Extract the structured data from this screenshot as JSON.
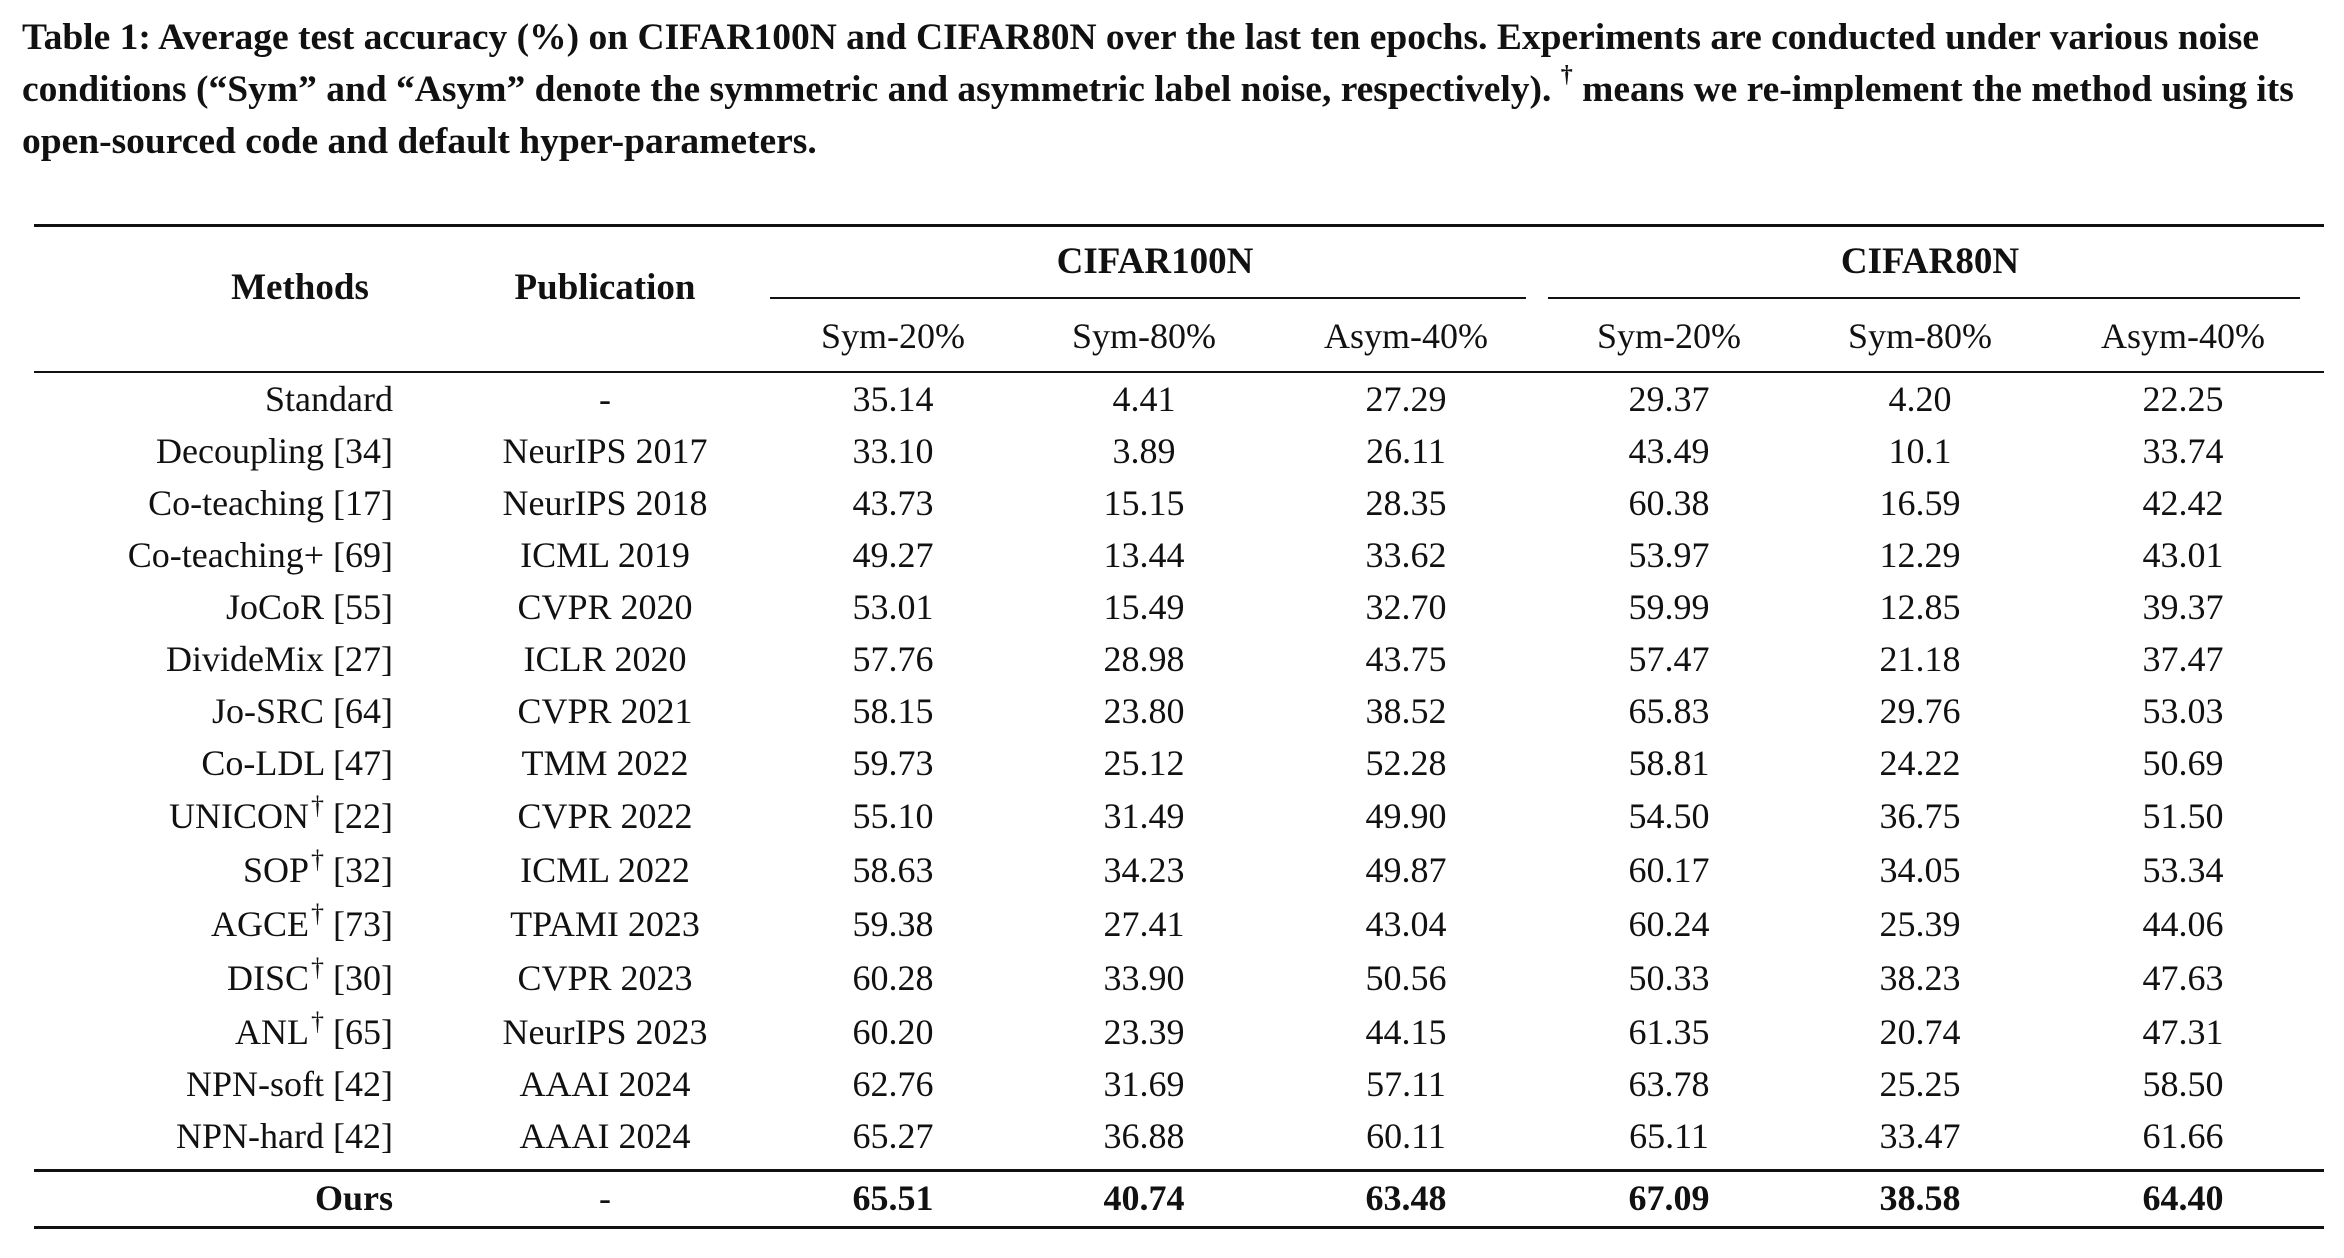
{
  "caption": {
    "part1": "Table 1: Average test accuracy (%) on CIFAR100N and CIFAR80N over the last ten epochs. Experiments are conducted under various noise conditions (“Sym” and “Asym” denote the symmetric and asymmetric label noise, respectively). ",
    "dagger": "†",
    "part2": " means we re-implement the method using its open-sourced code and default hyper-parameters."
  },
  "headers": {
    "methods": "Methods",
    "publication": "Publication",
    "group1": "CIFAR100N",
    "group2": "CIFAR80N",
    "subcols": [
      "Sym-20%",
      "Sym-80%",
      "Asym-40%",
      "Sym-20%",
      "Sym-80%",
      "Asym-40%"
    ]
  },
  "rows": [
    {
      "method": "Standard",
      "dagger": "",
      "ref": "",
      "pub": "-",
      "values": [
        "35.14",
        "4.41",
        "27.29",
        "29.37",
        "4.20",
        "22.25"
      ]
    },
    {
      "method": "Decoupling",
      "dagger": "",
      "ref": "[34]",
      "pub": "NeurIPS 2017",
      "values": [
        "33.10",
        "3.89",
        "26.11",
        "43.49",
        "10.1",
        "33.74"
      ]
    },
    {
      "method": "Co-teaching",
      "dagger": "",
      "ref": "[17]",
      "pub": "NeurIPS 2018",
      "values": [
        "43.73",
        "15.15",
        "28.35",
        "60.38",
        "16.59",
        "42.42"
      ]
    },
    {
      "method": "Co-teaching+",
      "dagger": "",
      "ref": "[69]",
      "pub": "ICML 2019",
      "values": [
        "49.27",
        "13.44",
        "33.62",
        "53.97",
        "12.29",
        "43.01"
      ]
    },
    {
      "method": "JoCoR",
      "dagger": "",
      "ref": "[55]",
      "pub": "CVPR 2020",
      "values": [
        "53.01",
        "15.49",
        "32.70",
        "59.99",
        "12.85",
        "39.37"
      ]
    },
    {
      "method": "DivideMix",
      "dagger": "",
      "ref": "[27]",
      "pub": "ICLR 2020",
      "values": [
        "57.76",
        "28.98",
        "43.75",
        "57.47",
        "21.18",
        "37.47"
      ]
    },
    {
      "method": "Jo-SRC",
      "dagger": "",
      "ref": "[64]",
      "pub": "CVPR 2021",
      "values": [
        "58.15",
        "23.80",
        "38.52",
        "65.83",
        "29.76",
        "53.03"
      ]
    },
    {
      "method": "Co-LDL",
      "dagger": "",
      "ref": "[47]",
      "pub": "TMM 2022",
      "values": [
        "59.73",
        "25.12",
        "52.28",
        "58.81",
        "24.22",
        "50.69"
      ]
    },
    {
      "method": "UNICON",
      "dagger": "†",
      "ref": "[22]",
      "pub": "CVPR 2022",
      "values": [
        "55.10",
        "31.49",
        "49.90",
        "54.50",
        "36.75",
        "51.50"
      ]
    },
    {
      "method": "SOP",
      "dagger": "†",
      "ref": "[32]",
      "pub": "ICML 2022",
      "values": [
        "58.63",
        "34.23",
        "49.87",
        "60.17",
        "34.05",
        "53.34"
      ]
    },
    {
      "method": "AGCE",
      "dagger": "†",
      "ref": "[73]",
      "pub": "TPAMI 2023",
      "values": [
        "59.38",
        "27.41",
        "43.04",
        "60.24",
        "25.39",
        "44.06"
      ]
    },
    {
      "method": "DISC",
      "dagger": "†",
      "ref": "[30]",
      "pub": "CVPR 2023",
      "values": [
        "60.28",
        "33.90",
        "50.56",
        "50.33",
        "38.23",
        "47.63"
      ]
    },
    {
      "method": "ANL",
      "dagger": "†",
      "ref": "[65]",
      "pub": "NeurIPS 2023",
      "values": [
        "60.20",
        "23.39",
        "44.15",
        "61.35",
        "20.74",
        "47.31"
      ]
    },
    {
      "method": "NPN-soft",
      "dagger": "",
      "ref": "[42]",
      "pub": "AAAI 2024",
      "values": [
        "62.76",
        "31.69",
        "57.11",
        "63.78",
        "25.25",
        "58.50"
      ]
    },
    {
      "method": "NPN-hard",
      "dagger": "",
      "ref": "[42]",
      "pub": "AAAI 2024",
      "values": [
        "65.27",
        "36.88",
        "60.11",
        "65.11",
        "33.47",
        "61.66"
      ]
    }
  ],
  "final_row": {
    "method": "Ours",
    "pub": "-",
    "values": [
      "65.51",
      "40.74",
      "63.48",
      "67.09",
      "38.58",
      "64.40"
    ]
  }
}
